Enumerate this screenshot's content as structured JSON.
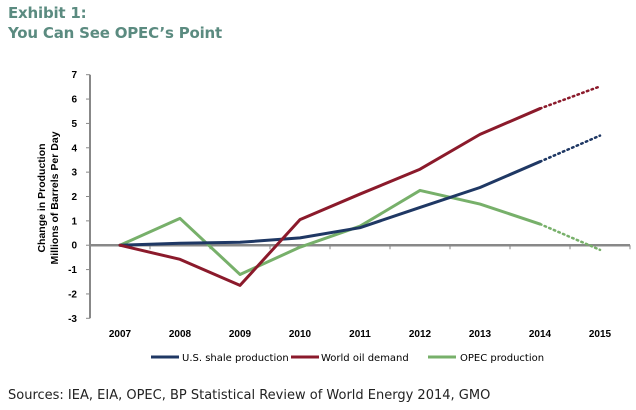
{
  "header": {
    "line1": "Exhibit 1:",
    "line2": "You Can See OPEC’s Point"
  },
  "footer": {
    "sources": "Sources: IEA, EIA, OPEC, BP Statistical Review of World Energy 2014, GMO"
  },
  "chart_data": {
    "type": "line",
    "title": "You Can See OPEC’s Point",
    "xlabel": "",
    "ylabel_lines": [
      "Change in Production",
      "Millions of Barrels Per Day"
    ],
    "categories": [
      "2007",
      "2008",
      "2009",
      "2010",
      "2011",
      "2012",
      "2013",
      "2014",
      "2015"
    ],
    "ylim": [
      -3,
      7
    ],
    "yticks": [
      -3,
      -2,
      -1,
      0,
      1,
      2,
      3,
      4,
      5,
      6,
      7
    ],
    "grid": false,
    "legend_position": "bottom",
    "projected_from": "2014",
    "series": [
      {
        "name": "U.S. shale production",
        "color": "#1f3864",
        "values": [
          0,
          0.08,
          0.12,
          0.3,
          0.72,
          1.55,
          2.37,
          3.43,
          4.5
        ]
      },
      {
        "name": "World oil demand",
        "color": "#8b1a2b",
        "values": [
          0,
          -0.58,
          -1.65,
          1.05,
          2.1,
          3.12,
          4.55,
          5.61,
          6.52
        ]
      },
      {
        "name": "OPEC production",
        "color": "#77b06a",
        "values": [
          0,
          1.1,
          -1.2,
          -0.08,
          0.78,
          2.25,
          1.69,
          0.87,
          -0.19
        ]
      }
    ]
  }
}
